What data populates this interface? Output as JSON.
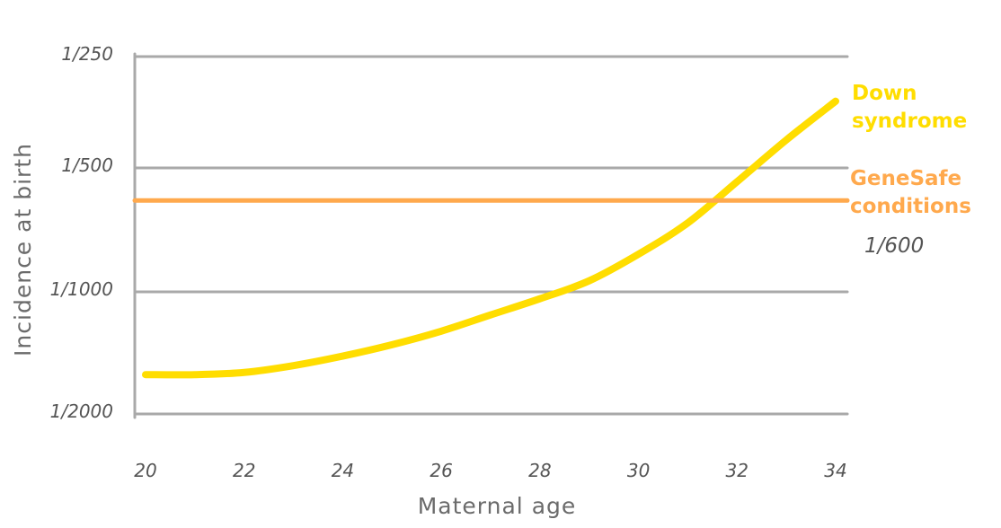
{
  "chart_data": {
    "type": "line",
    "xlabel": "Maternal age",
    "ylabel": "Incidence at birth",
    "xlim": [
      20,
      34
    ],
    "x_ticks": [
      "20",
      "22",
      "24",
      "26",
      "28",
      "30",
      "32",
      "34"
    ],
    "x_tick_values": [
      20,
      22,
      24,
      26,
      28,
      30,
      32,
      34
    ],
    "y_scale": "reciprocal",
    "y_ticks": [
      "1/250",
      "1/500",
      "1/1000",
      "1/2000"
    ],
    "y_tick_values": [
      250,
      500,
      1000,
      2000
    ],
    "grid": true,
    "series": [
      {
        "name": "Down syndrome",
        "color": "#FFDD00",
        "x": [
          20,
          21,
          22,
          23,
          24,
          25,
          26,
          27,
          28,
          29,
          30,
          31,
          32,
          33,
          34
        ],
        "y": [
          1600,
          1600,
          1580,
          1520,
          1440,
          1350,
          1250,
          1140,
          1040,
          940,
          810,
          680,
          540,
          420,
          330
        ]
      },
      {
        "name": "GeneSafe conditions",
        "color": "#FFA94D",
        "x": [
          20,
          34
        ],
        "y": [
          600,
          600
        ]
      }
    ],
    "annotations": [
      {
        "text": "1/600",
        "series": "GeneSafe conditions"
      }
    ]
  }
}
